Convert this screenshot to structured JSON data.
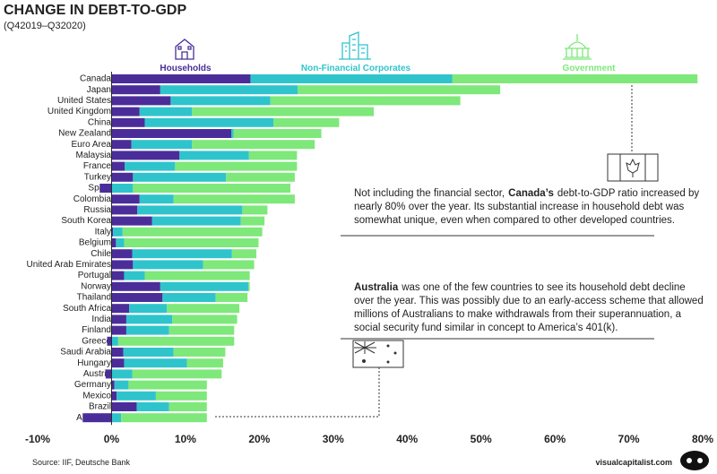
{
  "chart_data": {
    "type": "stacked-barh",
    "title": "CHANGE IN DEBT-TO-GDP",
    "subtitle": "(Q42019–Q32020)",
    "categories": [
      "Canada",
      "Japan",
      "United States",
      "United Kingdom",
      "China",
      "New Zealand",
      "Euro Area",
      "Malaysia",
      "France",
      "Turkey",
      "Spain",
      "Colombia",
      "Russia",
      "South Korea",
      "Italy",
      "Belgium",
      "Chile",
      "United Arab Emirates",
      "Portugal",
      "Norway",
      "Thailand",
      "South Africa",
      "India",
      "Finland",
      "Greece",
      "Saudi Arabia",
      "Hungary",
      "Austria",
      "Germany",
      "Mexico",
      "Brazil",
      "Australia"
    ],
    "series": [
      {
        "name": "Households",
        "color": "#4b2d9a",
        "values": [
          18.8,
          6.6,
          8.0,
          3.8,
          4.5,
          16.2,
          2.7,
          9.2,
          1.8,
          2.9,
          -1.6,
          3.8,
          3.5,
          5.5,
          0.2,
          0.6,
          2.8,
          2.9,
          1.7,
          6.6,
          6.9,
          2.4,
          2.0,
          2.0,
          -0.6,
          1.6,
          1.7,
          -0.8,
          0.4,
          0.7,
          3.4,
          -3.9
        ]
      },
      {
        "name": "Non-Financial Corporates",
        "color": "#2fc4cc",
        "values": [
          27.3,
          18.6,
          13.5,
          7.1,
          17.4,
          0.3,
          8.2,
          9.4,
          6.8,
          12.6,
          2.9,
          4.6,
          14.2,
          12.0,
          1.3,
          1.1,
          13.5,
          9.5,
          2.8,
          11.9,
          7.2,
          5.1,
          6.2,
          5.8,
          0.9,
          6.8,
          8.5,
          2.8,
          1.9,
          5.3,
          4.4,
          1.3
        ]
      },
      {
        "name": "Government",
        "color": "#7ee87a",
        "values": [
          33.2,
          27.4,
          25.7,
          24.6,
          8.9,
          11.9,
          16.6,
          6.5,
          16.5,
          9.3,
          21.3,
          16.4,
          3.4,
          3.2,
          18.9,
          18.2,
          3.3,
          6.9,
          14.2,
          0.2,
          4.3,
          9.8,
          8.8,
          8.8,
          15.7,
          7.0,
          4.9,
          12.1,
          10.6,
          6.9,
          5.1,
          11.6
        ]
      }
    ],
    "xlim": [
      -10,
      80
    ],
    "xticks": [
      {
        "value": -10,
        "label": "-10%"
      },
      {
        "value": 0,
        "label": "0%"
      },
      {
        "value": 10,
        "label": "10%"
      },
      {
        "value": 20,
        "label": "20%"
      },
      {
        "value": 30,
        "label": "30%"
      },
      {
        "value": 40,
        "label": "40%"
      },
      {
        "value": 50,
        "label": "50%"
      },
      {
        "value": 60,
        "label": "60%"
      },
      {
        "value": 70,
        "label": "70%"
      },
      {
        "value": 80,
        "label": "80%"
      }
    ],
    "annotations": [
      {
        "lead": "Not including the financial sector,",
        "bold": "Canada’s",
        "lines": [
          "debt-to-GDP ratio increased by",
          "nearly 80% over the year. Its substantial increase in household debt was",
          "somewhat unique, even when compared to other developed countries."
        ]
      },
      {
        "lead": "",
        "bold": "Australia",
        "lines": [
          "was one of the few countries to see its household debt decline",
          "over the year. This was possibly due to an early-access scheme that allowed",
          "millions of Australians to make withdrawals from their superannuation, a",
          "social security fund similar in concept to America’s 401(k)."
        ]
      }
    ],
    "source": "Source: IIF, Deutsche Bank",
    "brand": "visualcapitalist.com"
  }
}
